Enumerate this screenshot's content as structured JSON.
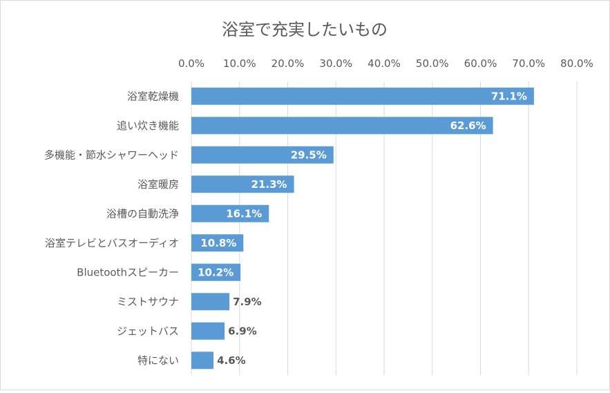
{
  "chart_data": {
    "type": "bar",
    "orientation": "horizontal",
    "title": "浴室で充実したいもの",
    "categories": [
      "浴室乾燥機",
      "追い炊き機能",
      "多機能・節水シャワーヘッド",
      "浴室暖房",
      "浴槽の自動洗浄",
      "浴室テレビとバスオーディオ",
      "Bluetoothスピーカー",
      "ミストサウナ",
      "ジェットバス",
      "特にない"
    ],
    "values": [
      71.1,
      62.6,
      29.5,
      21.3,
      16.1,
      10.8,
      10.2,
      7.9,
      6.9,
      4.6
    ],
    "data_labels": [
      "71.1%",
      "62.6%",
      "29.5%",
      "21.3%",
      "16.1%",
      "10.8%",
      "10.2%",
      "7.9%",
      "6.9%",
      "4.6%"
    ],
    "x_ticks": [
      "0.0%",
      "10.0%",
      "20.0%",
      "30.0%",
      "40.0%",
      "50.0%",
      "60.0%",
      "70.0%",
      "80.0%"
    ],
    "xlim": [
      0,
      80
    ],
    "x_axis_position": "top",
    "grid": true,
    "legend": "none",
    "colors": {
      "bar": "#5b9bd5",
      "label_inside": "#ffffff",
      "label_outside": "#595959",
      "grid": "#d9d9d9",
      "text": "#595959"
    }
  }
}
